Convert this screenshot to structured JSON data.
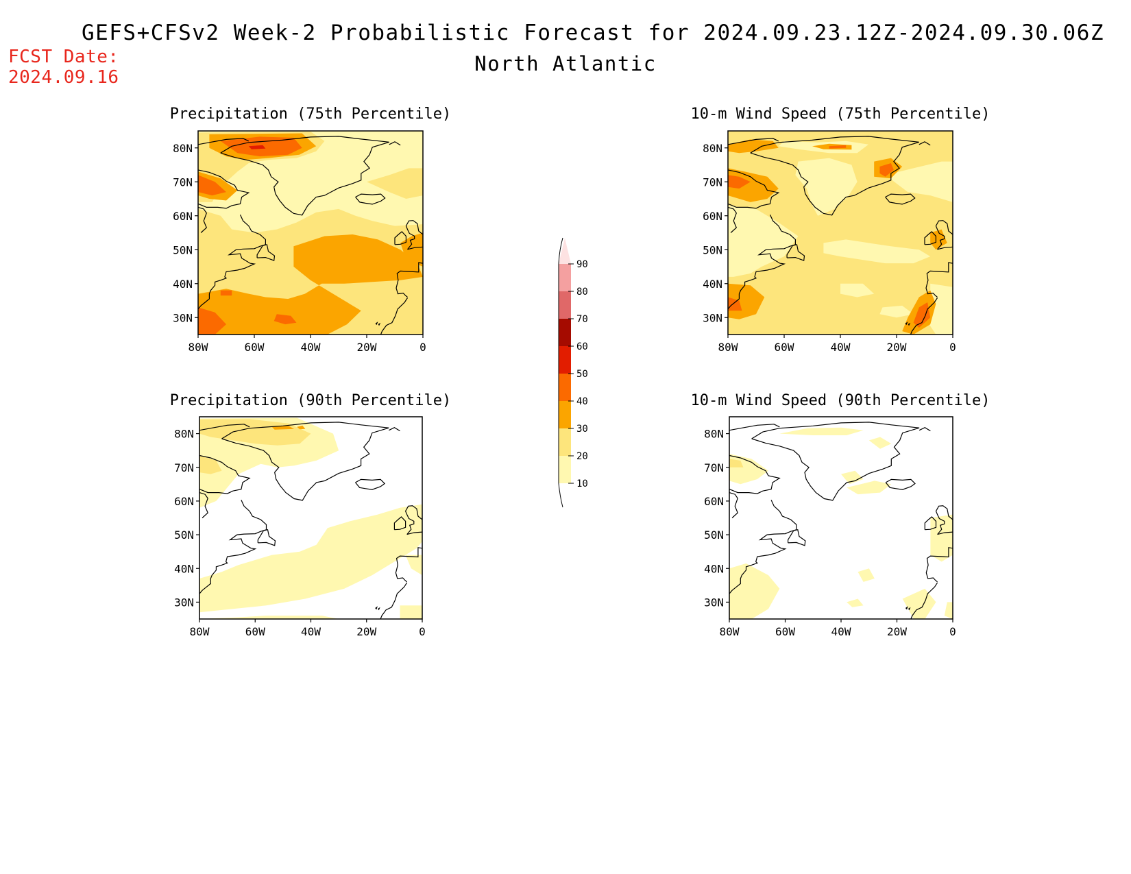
{
  "header": {
    "title": "GEFS+CFSv2 Week-2 Probabilistic Forecast for 2024.09.23.12Z-2024.09.30.06Z",
    "subtitle": "North Atlantic",
    "fcst_label": "FCST Date:",
    "fcst_value": "2024.09.16"
  },
  "colors": {
    "10": "#fff8b0",
    "20": "#fde57c",
    "30": "#fba500",
    "40": "#fb6a00",
    "50": "#e21d00",
    "60": "#a50b00",
    "70": "#e06868",
    "80": "#f4a0a0",
    "90": "#fde2e2",
    "coast": "#000000",
    "fcst_text": "#e8261c"
  },
  "colorbar": {
    "levels": [
      "10",
      "20",
      "30",
      "40",
      "50",
      "60",
      "70",
      "80",
      "90"
    ]
  },
  "axes": {
    "lon_ticks": [
      "80W",
      "60W",
      "40W",
      "20W",
      "0"
    ],
    "lat_ticks": [
      "80N",
      "70N",
      "60N",
      "50N",
      "40N",
      "30N"
    ],
    "lon_range": [
      -80,
      0
    ],
    "lat_range": [
      25,
      85
    ]
  },
  "panels": [
    {
      "id": "precip-75",
      "title": "Precipitation (75th Percentile)",
      "fill_intensity": "high"
    },
    {
      "id": "wind-75",
      "title": "10-m Wind Speed (75th Percentile)",
      "fill_intensity": "medium"
    },
    {
      "id": "precip-90",
      "title": "Precipitation (90th Percentile)",
      "fill_intensity": "low"
    },
    {
      "id": "wind-90",
      "title": "10-m Wind Speed (90th Percentile)",
      "fill_intensity": "very-low"
    }
  ]
}
